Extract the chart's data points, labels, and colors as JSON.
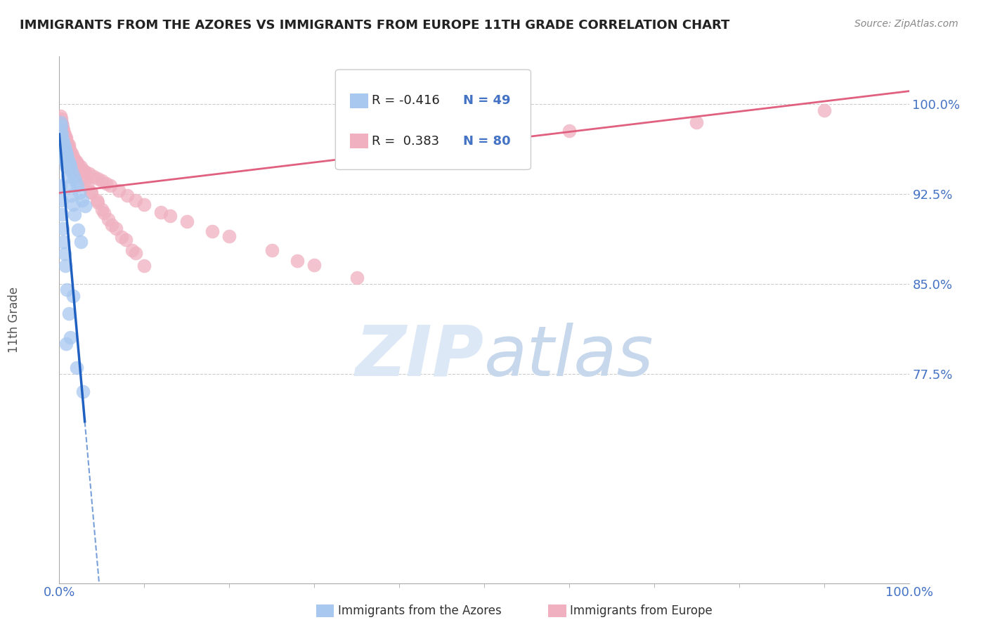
{
  "title": "IMMIGRANTS FROM THE AZORES VS IMMIGRANTS FROM EUROPE 11TH GRADE CORRELATION CHART",
  "source": "Source: ZipAtlas.com",
  "ylabel": "11th Grade",
  "y_ticks": [
    0.775,
    0.85,
    0.925,
    1.0
  ],
  "y_tick_labels": [
    "77.5%",
    "85.0%",
    "92.5%",
    "100.0%"
  ],
  "xlim": [
    0.0,
    1.0
  ],
  "ylim": [
    0.6,
    1.04
  ],
  "x_minor_ticks": [
    0.1,
    0.2,
    0.3,
    0.4,
    0.5,
    0.6,
    0.7,
    0.8,
    0.9
  ],
  "series": [
    {
      "name": "Immigrants from the Azores",
      "color": "#a8c8f0",
      "R": -0.416,
      "N": 49,
      "line_color": "#2060c0",
      "R_str": "R = -0.416",
      "N_str": "N = 49"
    },
    {
      "name": "Immigrants from Europe",
      "color": "#f0b0c0",
      "R": 0.383,
      "N": 80,
      "line_color": "#e06080",
      "R_str": "R =  0.383",
      "N_str": "N = 80"
    }
  ],
  "azores_x": [
    0.001,
    0.002,
    0.003,
    0.004,
    0.005,
    0.006,
    0.007,
    0.008,
    0.009,
    0.01,
    0.011,
    0.012,
    0.013,
    0.015,
    0.017,
    0.019,
    0.021,
    0.024,
    0.027,
    0.03,
    0.001,
    0.002,
    0.003,
    0.004,
    0.005,
    0.006,
    0.007,
    0.008,
    0.01,
    0.012,
    0.014,
    0.016,
    0.018,
    0.022,
    0.025,
    0.001,
    0.002,
    0.003,
    0.004,
    0.005,
    0.006,
    0.007,
    0.009,
    0.011,
    0.013,
    0.028,
    0.02,
    0.016,
    0.008
  ],
  "azores_y": [
    0.985,
    0.982,
    0.975,
    0.97,
    0.968,
    0.965,
    0.962,
    0.96,
    0.958,
    0.955,
    0.952,
    0.95,
    0.948,
    0.944,
    0.94,
    0.936,
    0.932,
    0.926,
    0.92,
    0.915,
    0.978,
    0.972,
    0.968,
    0.963,
    0.958,
    0.955,
    0.952,
    0.948,
    0.94,
    0.932,
    0.924,
    0.916,
    0.908,
    0.895,
    0.885,
    0.932,
    0.92,
    0.908,
    0.896,
    0.885,
    0.875,
    0.865,
    0.845,
    0.825,
    0.805,
    0.76,
    0.78,
    0.84,
    0.8
  ],
  "europe_x": [
    0.001,
    0.002,
    0.003,
    0.004,
    0.005,
    0.006,
    0.007,
    0.008,
    0.009,
    0.01,
    0.011,
    0.012,
    0.013,
    0.014,
    0.016,
    0.018,
    0.02,
    0.022,
    0.025,
    0.028,
    0.03,
    0.035,
    0.04,
    0.045,
    0.05,
    0.055,
    0.06,
    0.07,
    0.08,
    0.09,
    0.1,
    0.12,
    0.15,
    0.2,
    0.25,
    0.3,
    0.35,
    0.18,
    0.13,
    0.28,
    0.002,
    0.003,
    0.004,
    0.005,
    0.007,
    0.009,
    0.011,
    0.014,
    0.017,
    0.021,
    0.024,
    0.028,
    0.033,
    0.038,
    0.044,
    0.05,
    0.058,
    0.067,
    0.078,
    0.09,
    0.003,
    0.005,
    0.008,
    0.011,
    0.015,
    0.019,
    0.024,
    0.03,
    0.037,
    0.045,
    0.053,
    0.062,
    0.073,
    0.086,
    0.1,
    0.4,
    0.5,
    0.9,
    0.75,
    0.6
  ],
  "europe_y": [
    0.99,
    0.985,
    0.982,
    0.98,
    0.978,
    0.975,
    0.972,
    0.97,
    0.968,
    0.966,
    0.964,
    0.962,
    0.96,
    0.958,
    0.956,
    0.954,
    0.952,
    0.95,
    0.948,
    0.945,
    0.944,
    0.942,
    0.94,
    0.938,
    0.936,
    0.934,
    0.932,
    0.928,
    0.924,
    0.92,
    0.916,
    0.91,
    0.902,
    0.89,
    0.878,
    0.866,
    0.855,
    0.894,
    0.907,
    0.869,
    0.988,
    0.984,
    0.98,
    0.976,
    0.972,
    0.968,
    0.963,
    0.958,
    0.953,
    0.948,
    0.943,
    0.938,
    0.932,
    0.926,
    0.92,
    0.912,
    0.904,
    0.896,
    0.887,
    0.876,
    0.983,
    0.978,
    0.972,
    0.966,
    0.959,
    0.952,
    0.944,
    0.936,
    0.927,
    0.918,
    0.909,
    0.899,
    0.889,
    0.878,
    0.865,
    0.97,
    0.975,
    0.995,
    0.985,
    0.978
  ],
  "background_color": "#ffffff",
  "watermark_color": "#dce8f5",
  "grid_color": "#cccccc",
  "title_color": "#222222",
  "axis_label_color": "#4472c4",
  "tick_color": "#666666"
}
